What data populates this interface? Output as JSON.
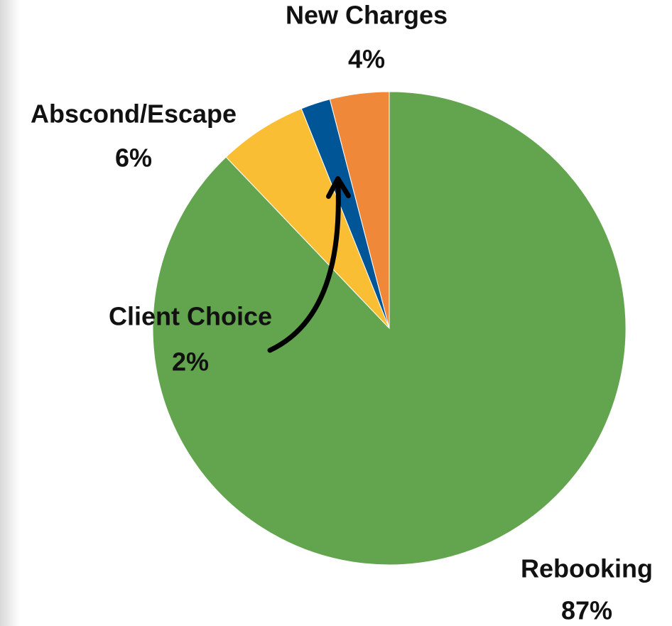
{
  "chart_data": {
    "type": "pie",
    "categories": [
      "Rebooking",
      "Abscond/Escape",
      "Client Choice",
      "New Charges"
    ],
    "values": [
      87,
      6,
      2,
      4
    ],
    "value_labels": [
      "87%",
      "6%",
      "2%",
      "4%"
    ],
    "colors": [
      "#63a54f",
      "#f9be33",
      "#005596",
      "#f0883a"
    ]
  }
}
